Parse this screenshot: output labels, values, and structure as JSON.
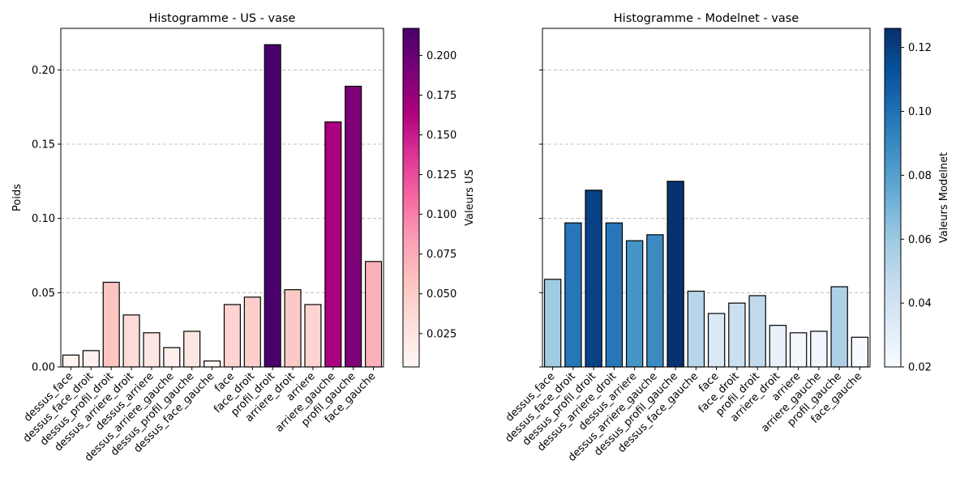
{
  "chart_data": [
    {
      "type": "bar",
      "title": "Histogramme - US - vase",
      "xlabel": "",
      "ylabel": "Poids",
      "ylim": [
        0,
        0.228
      ],
      "yticks": [
        0.0,
        0.05,
        0.1,
        0.15,
        0.2
      ],
      "ytick_labels": [
        "0.00",
        "0.05",
        "0.10",
        "0.15",
        "0.20"
      ],
      "grid": "horizontal dashed",
      "categories": [
        "dessus_face",
        "dessus_face_droit",
        "dessus_profil_droit",
        "dessus_arriere_droit",
        "dessus_arriere",
        "dessus_arriere_gauche",
        "dessus_profil_gauche",
        "dessus_face_gauche",
        "face",
        "face_droit",
        "profil_droit",
        "arriere_droit",
        "arriere",
        "arriere_gauche",
        "profil_gauche",
        "face_gauche"
      ],
      "values": [
        0.008,
        0.011,
        0.057,
        0.035,
        0.023,
        0.013,
        0.024,
        0.004,
        0.042,
        0.047,
        0.217,
        0.052,
        0.042,
        0.165,
        0.189,
        0.071
      ],
      "colormap": "RdPu",
      "colorbar": {
        "label": "Valeurs US",
        "range": [
          0.004,
          0.217
        ],
        "ticks": [
          0.025,
          0.05,
          0.075,
          0.1,
          0.125,
          0.15,
          0.175,
          0.2
        ],
        "tick_labels": [
          "0.025",
          "0.050",
          "0.075",
          "0.100",
          "0.125",
          "0.150",
          "0.175",
          "0.200"
        ],
        "stops": [
          "#fff7f3",
          "#fde0dd",
          "#fcc5c0",
          "#fa9fb5",
          "#f768a1",
          "#dd3497",
          "#ae017e",
          "#7a0177",
          "#49006a"
        ]
      }
    },
    {
      "type": "bar",
      "title": "Histogramme - Modelnet - vase",
      "xlabel": "",
      "ylabel": "",
      "ylim": [
        0,
        0.228
      ],
      "yticks": [
        0.0,
        0.05,
        0.1,
        0.15,
        0.2
      ],
      "ytick_labels": [],
      "grid": "horizontal dashed",
      "categories": [
        "dessus_face",
        "dessus_face_droit",
        "dessus_profil_droit",
        "dessus_arriere_droit",
        "dessus_arriere",
        "dessus_arriere_gauche",
        "dessus_profil_gauche",
        "dessus_face_gauche",
        "face",
        "face_droit",
        "profil_droit",
        "arriere_droit",
        "arriere",
        "arriere_gauche",
        "profil_gauche",
        "face_gauche"
      ],
      "values": [
        0.059,
        0.097,
        0.119,
        0.097,
        0.085,
        0.089,
        0.125,
        0.051,
        0.036,
        0.043,
        0.048,
        0.028,
        0.023,
        0.024,
        0.054,
        0.02
      ],
      "colormap": "Blues",
      "colorbar": {
        "label": "Valeurs Modelnet",
        "range": [
          0.02,
          0.126
        ],
        "ticks": [
          0.02,
          0.04,
          0.06,
          0.08,
          0.1,
          0.12
        ],
        "tick_labels": [
          "0.02",
          "0.04",
          "0.06",
          "0.08",
          "0.10",
          "0.12"
        ],
        "stops": [
          "#f7fbff",
          "#deebf7",
          "#c6dbef",
          "#9ecae1",
          "#6baed6",
          "#4292c6",
          "#2171b5",
          "#08519c",
          "#08306b"
        ]
      }
    }
  ]
}
